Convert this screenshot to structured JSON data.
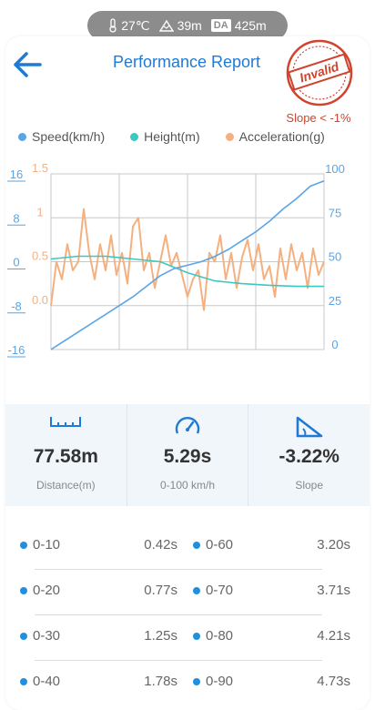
{
  "status": {
    "temperature": "27℃",
    "altitude": "39m",
    "da_label": "DA",
    "density_altitude": "425m"
  },
  "header": {
    "title": "Performance Report",
    "stamp_text": "Invalid",
    "warning": "Slope < -1%"
  },
  "colors": {
    "speed": "#5aa5e6",
    "height": "#3cc8c0",
    "acceleration": "#f5b07f",
    "accent": "#1f7ad6",
    "stamp": "#d0432e"
  },
  "chart_data": {
    "type": "line",
    "legend": [
      "Speed(km/h)",
      "Height(m)",
      "Acceleration(g)"
    ],
    "legend_position": "top",
    "grid": true,
    "axes": {
      "height_ticks": [
        "16",
        "8",
        "0",
        "-8",
        "-16"
      ],
      "acceleration_ticks": [
        "1.5",
        "1",
        "0.5",
        "0.0"
      ],
      "speed_ticks": [
        "100",
        "75",
        "50",
        "25",
        "0"
      ],
      "height_range": [
        -16,
        16
      ],
      "acceleration_range": [
        -0.5,
        1.5
      ],
      "speed_range": [
        0,
        100
      ]
    },
    "series": [
      {
        "name": "Speed(km/h)",
        "axis": "speed",
        "x": [
          0,
          0.03,
          0.06,
          0.1,
          0.15,
          0.2,
          0.25,
          0.3,
          0.35,
          0.4,
          0.45,
          0.5,
          0.55,
          0.6,
          0.65,
          0.7,
          0.75,
          0.8,
          0.85,
          0.9,
          0.95,
          1.0
        ],
        "y": [
          0,
          3,
          6,
          10,
          15,
          20,
          25,
          30,
          36,
          42,
          46,
          48,
          50,
          53,
          57,
          62,
          67,
          73,
          80,
          86,
          93,
          96
        ]
      },
      {
        "name": "Height(m)",
        "axis": "height",
        "x": [
          0,
          0.1,
          0.2,
          0.3,
          0.4,
          0.5,
          0.6,
          0.7,
          0.8,
          0.9,
          1.0
        ],
        "y": [
          0.5,
          1,
          1,
          0.5,
          0,
          -2,
          -3.5,
          -4,
          -4.3,
          -4.5,
          -4.5
        ]
      },
      {
        "name": "Acceleration(g)",
        "axis": "acceleration",
        "x": [
          0,
          0.02,
          0.04,
          0.06,
          0.08,
          0.1,
          0.12,
          0.14,
          0.16,
          0.18,
          0.2,
          0.22,
          0.24,
          0.26,
          0.28,
          0.3,
          0.32,
          0.34,
          0.36,
          0.38,
          0.4,
          0.42,
          0.44,
          0.46,
          0.48,
          0.5,
          0.52,
          0.54,
          0.56,
          0.58,
          0.6,
          0.62,
          0.64,
          0.66,
          0.68,
          0.7,
          0.72,
          0.74,
          0.76,
          0.78,
          0.8,
          0.82,
          0.84,
          0.86,
          0.88,
          0.9,
          0.92,
          0.94,
          0.96,
          0.98,
          1.0
        ],
        "y": [
          0.0,
          0.5,
          0.3,
          0.7,
          0.4,
          0.5,
          1.1,
          0.6,
          0.3,
          0.7,
          0.4,
          0.8,
          0.35,
          0.6,
          0.25,
          0.9,
          1.0,
          0.4,
          0.6,
          0.2,
          0.5,
          0.8,
          0.45,
          0.6,
          0.35,
          0.1,
          0.3,
          0.4,
          -0.05,
          0.6,
          0.5,
          0.8,
          0.3,
          0.6,
          0.2,
          0.55,
          0.75,
          0.4,
          0.7,
          0.3,
          0.45,
          0.1,
          0.65,
          0.3,
          0.7,
          0.4,
          0.6,
          0.2,
          0.65,
          0.35,
          0.5
        ]
      }
    ]
  },
  "stats": [
    {
      "icon": "ruler-icon",
      "value": "77.58m",
      "label": "Distance(m)"
    },
    {
      "icon": "speedometer-icon",
      "value": "5.29s",
      "label": "0-100 km/h"
    },
    {
      "icon": "slope-icon",
      "value": "-3.22%",
      "label": "Slope"
    }
  ],
  "splits": [
    {
      "left_label": "0-10",
      "left_time": "0.42s",
      "right_label": "0-60",
      "right_time": "3.20s"
    },
    {
      "left_label": "0-20",
      "left_time": "0.77s",
      "right_label": "0-70",
      "right_time": "3.71s"
    },
    {
      "left_label": "0-30",
      "left_time": "1.25s",
      "right_label": "0-80",
      "right_time": "4.21s"
    },
    {
      "left_label": "0-40",
      "left_time": "1.78s",
      "right_label": "0-90",
      "right_time": "4.73s"
    }
  ]
}
